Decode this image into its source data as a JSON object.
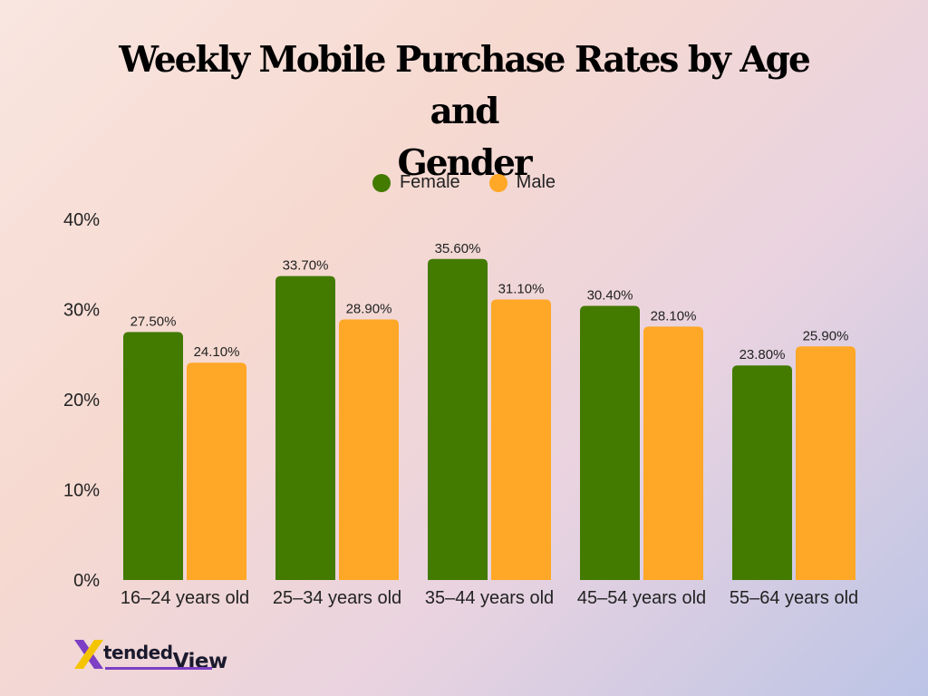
{
  "chart_data": {
    "type": "bar",
    "title_line1": "Weekly Mobile Purchase Rates by Age and",
    "title_line2": "Gender",
    "categories": [
      "16–24 years old",
      "25–34 years old",
      "35–44 years old",
      "45–54 years old",
      "55–64 years old"
    ],
    "series": [
      {
        "name": "Female",
        "color": "#437a00",
        "values": [
          27.5,
          33.7,
          35.6,
          30.4,
          23.8
        ],
        "labels": [
          "27.50%",
          "33.70%",
          "35.60%",
          "30.40%",
          "23.80%"
        ]
      },
      {
        "name": "Male",
        "color": "#ffa726",
        "values": [
          24.1,
          28.9,
          31.1,
          28.1,
          25.9
        ],
        "labels": [
          "24.10%",
          "28.90%",
          "31.10%",
          "28.10%",
          "25.90%"
        ]
      }
    ],
    "yticks": [
      "0%",
      "10%",
      "20%",
      "30%",
      "40%"
    ],
    "ytick_values": [
      0,
      10,
      20,
      30,
      40
    ],
    "ylim": [
      0,
      40
    ],
    "grid": false,
    "legend_position": "top-center"
  },
  "logo": {
    "brand_part1": "tended",
    "brand_part2": "View",
    "icon": "x-logo-icon"
  }
}
